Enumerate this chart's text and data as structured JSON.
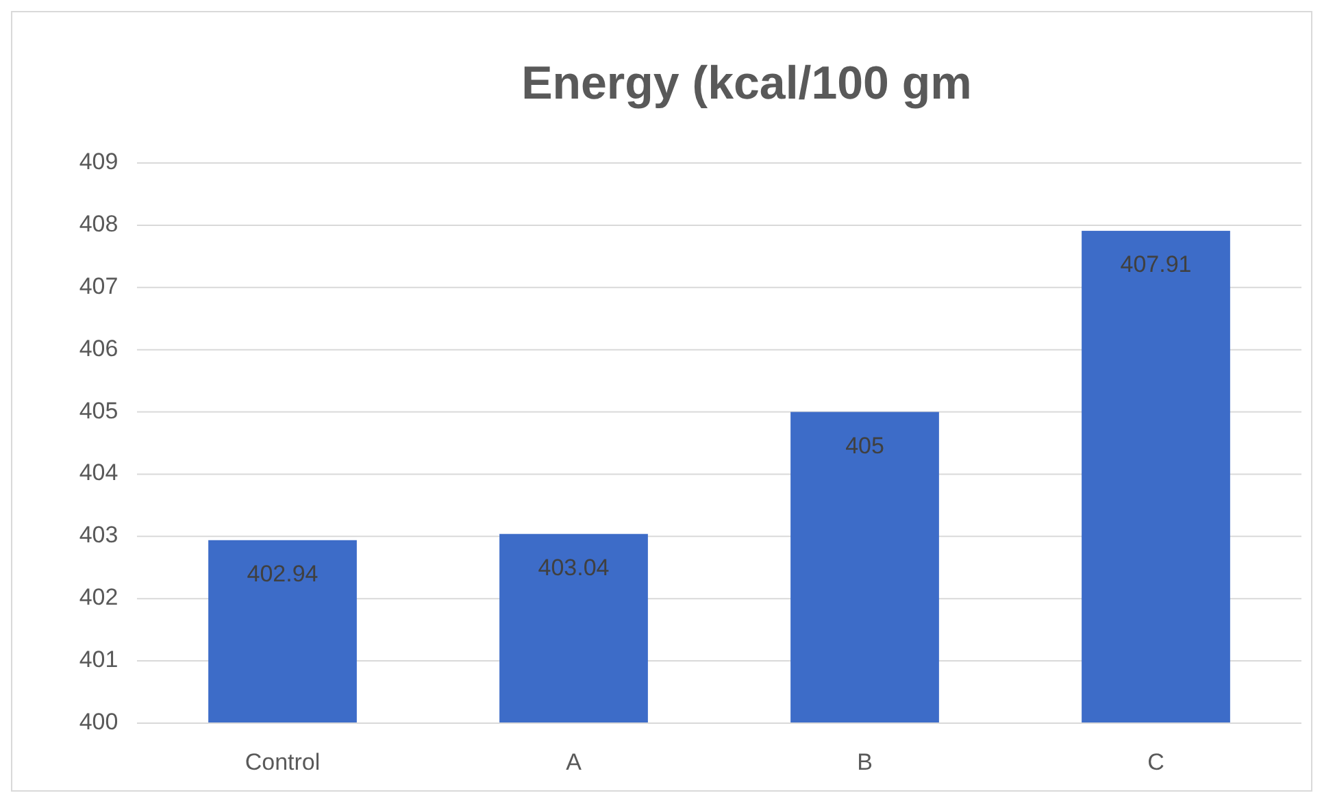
{
  "chart_data": {
    "type": "bar",
    "title": "Energy (kcal/100 gm",
    "categories": [
      "Control",
      "A",
      "B",
      "C"
    ],
    "values": [
      402.94,
      403.04,
      405,
      407.91
    ],
    "color": "#3d6cc8",
    "ylim": [
      400,
      409
    ],
    "yticks": [
      400,
      401,
      402,
      403,
      404,
      405,
      406,
      407,
      408,
      409
    ],
    "grid": "y",
    "data_labels": true
  }
}
